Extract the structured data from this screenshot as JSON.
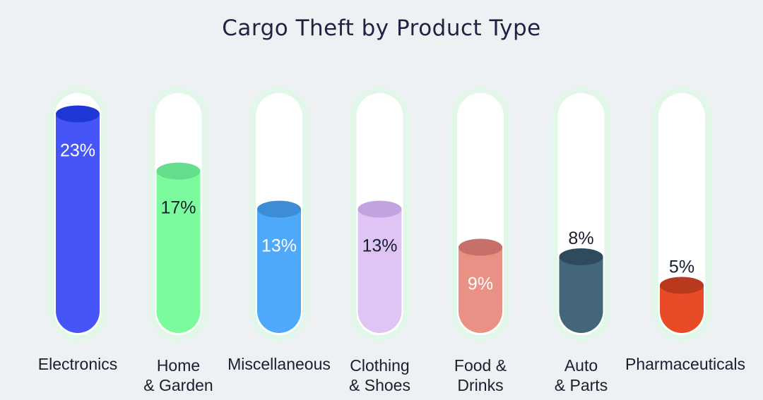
{
  "chart_data": {
    "type": "bar",
    "title": "Cargo Theft by Product Type",
    "categories": [
      [
        "Electronics"
      ],
      [
        "Home",
        "& Garden"
      ],
      [
        "Miscellaneous"
      ],
      [
        "Clothing",
        "& Shoes"
      ],
      [
        "Food &",
        "Drinks"
      ],
      [
        "Auto",
        "& Parts"
      ],
      [
        "Pharmaceuticals"
      ]
    ],
    "values": [
      23,
      17,
      13,
      13,
      9,
      8,
      5
    ],
    "value_labels": [
      "23%",
      "17%",
      "13%",
      "13%",
      "9%",
      "8%",
      "5%"
    ],
    "ylim": [
      0,
      25
    ],
    "grid": false,
    "colors": {
      "fill": [
        "#4655f8",
        "#7bfb9d",
        "#4ea9fb",
        "#e0c4f5",
        "#ea9186",
        "#44667a",
        "#e84b28"
      ],
      "top": [
        "#1f37d6",
        "#66dd8c",
        "#3c8cd6",
        "#c4a2e0",
        "#c7706a",
        "#2e4a5c",
        "#b9391f"
      ],
      "label": [
        "#ffffff",
        "#16202e",
        "#ffffff",
        "#16202e",
        "#ffffff",
        "#ffffff",
        "#16202e"
      ],
      "tube": "#ffffff",
      "glow": "#e3f6ea"
    }
  }
}
